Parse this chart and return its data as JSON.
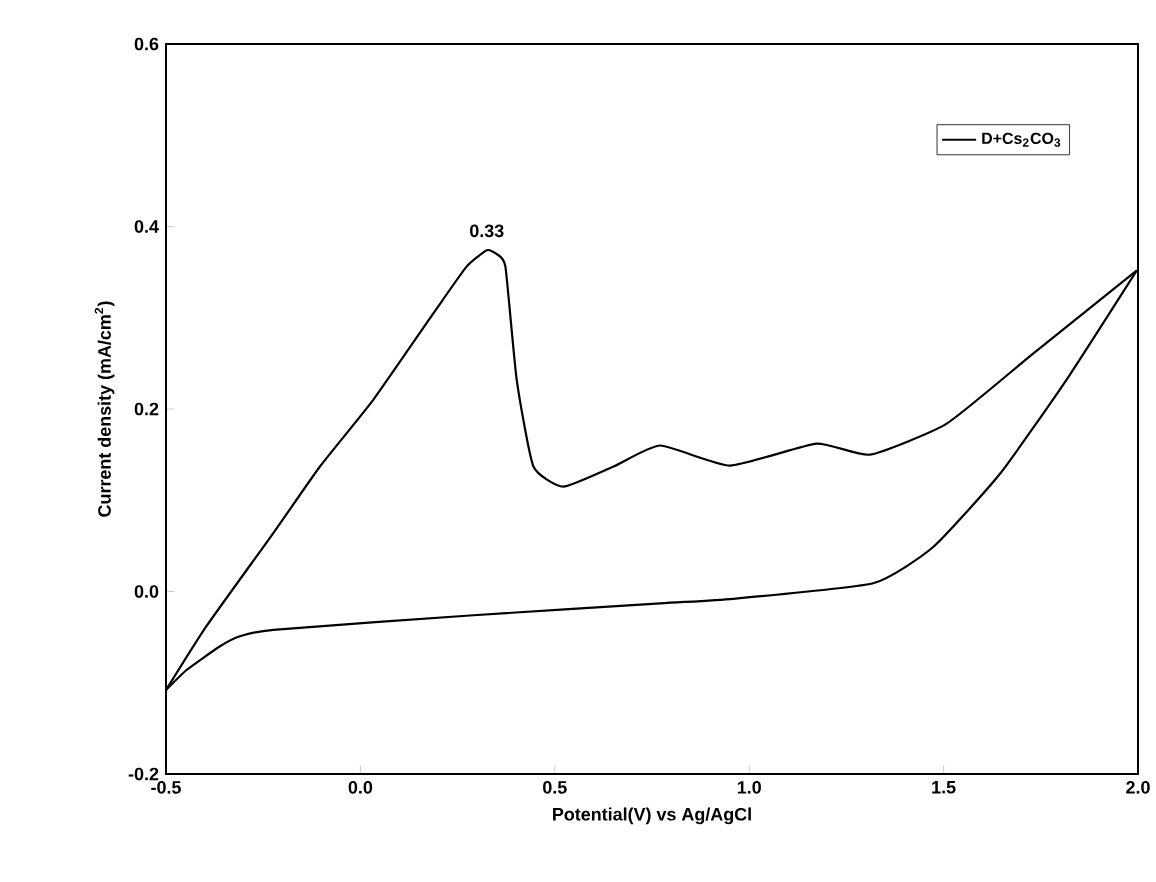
{
  "chart_data": {
    "type": "line",
    "xlabel": "Potential(V) vs Ag/AgCl",
    "ylabel": "Current density (mA/cm$^{2}$)",
    "xlim": [
      -0.5,
      2.0
    ],
    "ylim": [
      -0.2,
      0.6
    ],
    "xticks": [
      -0.5,
      {
        "value": 0,
        "label": "0.0"
      },
      0.5,
      {
        "value": 1,
        "label": "1.0"
      },
      1.5,
      {
        "value": 2,
        "label": "2.0"
      }
    ],
    "yticks": [
      -0.2,
      {
        "value": 0,
        "label": "0.0"
      },
      0.2,
      0.4,
      0.6
    ],
    "legend": "top right",
    "marker": "none",
    "line_style": "solid",
    "grid": false,
    "annotations": [
      {
        "text": "0.33",
        "x": 0.325,
        "y": 0.374
      }
    ],
    "series": [
      {
        "name": "D+Cs$_{2}$CO$_{3}$",
        "color": "#000000",
        "x": [
          -0.5,
          -0.396,
          -0.224,
          -0.104,
          0.033,
          0.188,
          0.273,
          0.325,
          0.35,
          0.373,
          0.402,
          0.445,
          0.522,
          0.651,
          0.771,
          0.951,
          1.173,
          1.311,
          1.508,
          1.731,
          1.997
        ],
        "values": [
          -0.108,
          -0.038,
          0.064,
          0.137,
          0.21,
          0.305,
          0.356,
          0.374,
          0.37,
          0.356,
          0.232,
          0.137,
          0.115,
          0.137,
          0.16,
          0.138,
          0.162,
          0.15,
          0.184,
          0.261,
          0.352
        ]
      },
      {
        "color": "#000000",
        "x": [
          -0.5,
          -0.447,
          -0.361,
          -0.31,
          -0.224,
          0.291,
          0.771,
          0.959,
          1.319,
          1.474,
          1.645,
          1.816,
          1.997
        ],
        "values": [
          -0.108,
          -0.086,
          -0.06,
          -0.049,
          -0.042,
          -0.026,
          -0.013,
          -0.008,
          0.009,
          0.049,
          0.129,
          0.232,
          0.352
        ]
      }
    ]
  }
}
